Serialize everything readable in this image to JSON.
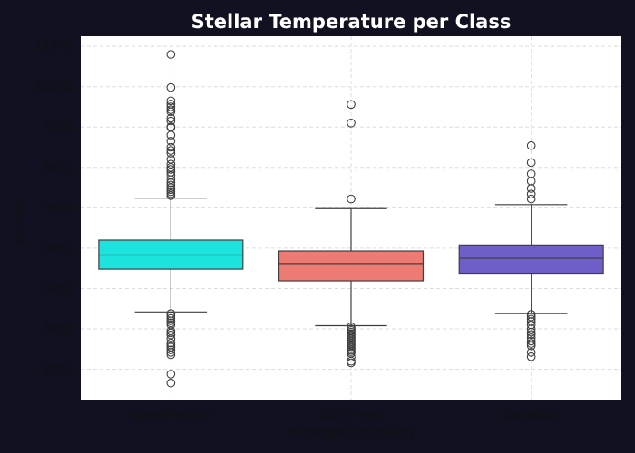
{
  "chart_data": {
    "type": "box",
    "title": "Stellar Temperature per Class",
    "xlabel": "Predicted Disposition",
    "ylabel": "koi_steff",
    "ylim": [
      2250,
      11250
    ],
    "yticks": [
      3000,
      4000,
      5000,
      6000,
      7000,
      8000,
      9000,
      10000,
      11000
    ],
    "grid": true,
    "categories": [
      "False Positive",
      "Confirmed",
      "Candidate"
    ],
    "colors": [
      "#1de3df",
      "#ee7b73",
      "#6e5ec7"
    ],
    "boxes": [
      {
        "category": "False Positive",
        "whisker_low": 4420,
        "q1": 5480,
        "median": 5830,
        "q3": 6200,
        "whisker_high": 7240,
        "outliers": [
          10800,
          9980,
          9650,
          9570,
          9500,
          9430,
          9380,
          9220,
          9150,
          9010,
          8990,
          8800,
          8650,
          8500,
          8420,
          8350,
          8200,
          8080,
          8000,
          7950,
          7880,
          7800,
          7700,
          7620,
          7560,
          7500,
          7450,
          7400,
          7350,
          7300,
          4380,
          4320,
          4260,
          4200,
          4150,
          4100,
          3950,
          3900,
          3850,
          3750,
          3650,
          3600,
          3550,
          3480,
          3420,
          3360,
          2880,
          2660
        ]
      },
      {
        "category": "Confirmed",
        "whisker_low": 4080,
        "q1": 5190,
        "median": 5620,
        "q3": 5930,
        "whisker_high": 6980,
        "outliers": [
          9560,
          9100,
          7220,
          4050,
          4000,
          3960,
          3920,
          3880,
          3840,
          3800,
          3760,
          3720,
          3680,
          3640,
          3600,
          3560,
          3520,
          3480,
          3440,
          3400,
          3300,
          3200,
          3160
        ]
      },
      {
        "category": "Candidate",
        "whisker_low": 4380,
        "q1": 5380,
        "median": 5750,
        "q3": 6080,
        "whisker_high": 7080,
        "outliers": [
          8540,
          8120,
          7840,
          7660,
          7480,
          7340,
          7220,
          4360,
          4300,
          4240,
          4180,
          4100,
          4000,
          3920,
          3860,
          3780,
          3700,
          3640,
          3580,
          3420,
          3310
        ]
      }
    ]
  }
}
